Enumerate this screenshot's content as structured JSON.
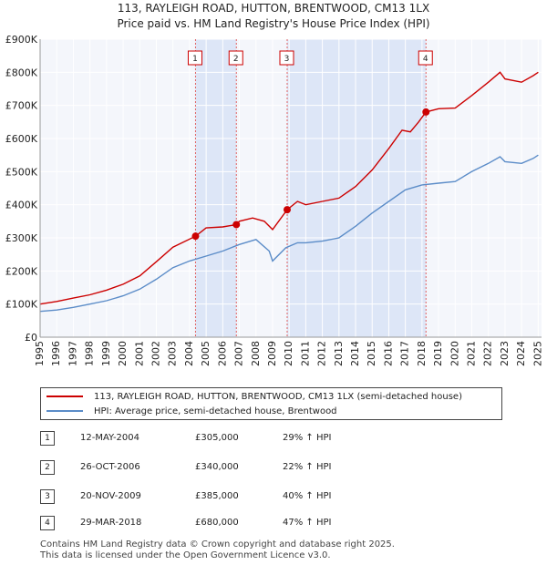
{
  "chart_data": {
    "type": "line",
    "title": "113, RAYLEIGH ROAD, HUTTON, BRENTWOOD, CM13 1LX",
    "subtitle": "Price paid vs. HM Land Registry's House Price Index (HPI)",
    "xlabel": "",
    "ylabel": "",
    "xlim": [
      1995,
      2025.2
    ],
    "ylim": [
      0,
      900000
    ],
    "x_ticks": [
      "1995",
      "1996",
      "1997",
      "1998",
      "1999",
      "2000",
      "2001",
      "2002",
      "2003",
      "2004",
      "2005",
      "2006",
      "2007",
      "2008",
      "2009",
      "2010",
      "2011",
      "2012",
      "2013",
      "2014",
      "2015",
      "2016",
      "2017",
      "2018",
      "2019",
      "2020",
      "2021",
      "2022",
      "2023",
      "2024",
      "2025"
    ],
    "y_ticks": [
      {
        "value": 0,
        "label": "£0"
      },
      {
        "value": 100000,
        "label": "£100K"
      },
      {
        "value": 200000,
        "label": "£200K"
      },
      {
        "value": 300000,
        "label": "£300K"
      },
      {
        "value": 400000,
        "label": "£400K"
      },
      {
        "value": 500000,
        "label": "£500K"
      },
      {
        "value": 600000,
        "label": "£600K"
      },
      {
        "value": 700000,
        "label": "£700K"
      },
      {
        "value": 800000,
        "label": "£800K"
      },
      {
        "value": 900000,
        "label": "£900K"
      }
    ],
    "grid": true,
    "series": [
      {
        "name": "113, RAYLEIGH ROAD, HUTTON, BRENTWOOD, CM13 1LX (semi-detached house)",
        "color": "#cc0000",
        "points": [
          [
            1995,
            100000
          ],
          [
            1996,
            108000
          ],
          [
            1997,
            118000
          ],
          [
            1998,
            128000
          ],
          [
            1999,
            142000
          ],
          [
            2000,
            160000
          ],
          [
            2001,
            185000
          ],
          [
            2002,
            228000
          ],
          [
            2003,
            272000
          ],
          [
            2004.36,
            305000
          ],
          [
            2005,
            330000
          ],
          [
            2006,
            333000
          ],
          [
            2006.82,
            340000
          ],
          [
            2007,
            350000
          ],
          [
            2007.8,
            360000
          ],
          [
            2008.5,
            350000
          ],
          [
            2009,
            325000
          ],
          [
            2009.88,
            385000
          ],
          [
            2010.5,
            410000
          ],
          [
            2011,
            400000
          ],
          [
            2012,
            410000
          ],
          [
            2013,
            420000
          ],
          [
            2014,
            455000
          ],
          [
            2015,
            505000
          ],
          [
            2016,
            570000
          ],
          [
            2016.8,
            625000
          ],
          [
            2017.3,
            620000
          ],
          [
            2017.8,
            650000
          ],
          [
            2018.24,
            680000
          ],
          [
            2019,
            690000
          ],
          [
            2020,
            692000
          ],
          [
            2021,
            730000
          ],
          [
            2022,
            770000
          ],
          [
            2022.7,
            800000
          ],
          [
            2023,
            780000
          ],
          [
            2024,
            770000
          ],
          [
            2024.7,
            790000
          ],
          [
            2025,
            800000
          ]
        ]
      },
      {
        "name": "HPI: Average price, semi-detached house, Brentwood",
        "color": "#5b8cc8",
        "points": [
          [
            1995,
            78000
          ],
          [
            1996,
            82000
          ],
          [
            1997,
            90000
          ],
          [
            1998,
            100000
          ],
          [
            1999,
            110000
          ],
          [
            2000,
            125000
          ],
          [
            2001,
            145000
          ],
          [
            2002,
            175000
          ],
          [
            2003,
            210000
          ],
          [
            2004,
            230000
          ],
          [
            2005,
            245000
          ],
          [
            2006,
            260000
          ],
          [
            2007,
            280000
          ],
          [
            2008,
            295000
          ],
          [
            2008.8,
            260000
          ],
          [
            2009,
            230000
          ],
          [
            2009.8,
            270000
          ],
          [
            2010.5,
            285000
          ],
          [
            2011,
            285000
          ],
          [
            2012,
            290000
          ],
          [
            2013,
            300000
          ],
          [
            2014,
            335000
          ],
          [
            2015,
            375000
          ],
          [
            2016,
            410000
          ],
          [
            2017,
            445000
          ],
          [
            2018,
            460000
          ],
          [
            2019,
            465000
          ],
          [
            2020,
            470000
          ],
          [
            2021,
            500000
          ],
          [
            2022,
            525000
          ],
          [
            2022.7,
            545000
          ],
          [
            2023,
            530000
          ],
          [
            2024,
            525000
          ],
          [
            2024.7,
            540000
          ],
          [
            2025,
            550000
          ]
        ]
      }
    ],
    "sales": [
      {
        "id": "1",
        "x": 2004.36,
        "value": 305000
      },
      {
        "id": "2",
        "x": 2006.82,
        "value": 340000
      },
      {
        "id": "3",
        "x": 2009.88,
        "value": 385000
      },
      {
        "id": "4",
        "x": 2018.24,
        "value": 680000
      }
    ],
    "shaded_ranges": [
      [
        2004.36,
        2006.82
      ],
      [
        2009.88,
        2018.24
      ]
    ]
  },
  "legend": {
    "property_label": "113, RAYLEIGH ROAD, HUTTON, BRENTWOOD, CM13 1LX (semi-detached house)",
    "hpi_label": "HPI: Average price, semi-detached house, Brentwood"
  },
  "sales_table": [
    {
      "num": "1",
      "date": "12-MAY-2004",
      "price": "£305,000",
      "hpi": "29% ↑ HPI"
    },
    {
      "num": "2",
      "date": "26-OCT-2006",
      "price": "£340,000",
      "hpi": "22% ↑ HPI"
    },
    {
      "num": "3",
      "date": "20-NOV-2009",
      "price": "£385,000",
      "hpi": "40% ↑ HPI"
    },
    {
      "num": "4",
      "date": "29-MAR-2018",
      "price": "£680,000",
      "hpi": "47% ↑ HPI"
    }
  ],
  "footer": {
    "line1": "Contains HM Land Registry data © Crown copyright and database right 2025.",
    "line2": "This data is licensed under the Open Government Licence v3.0."
  }
}
